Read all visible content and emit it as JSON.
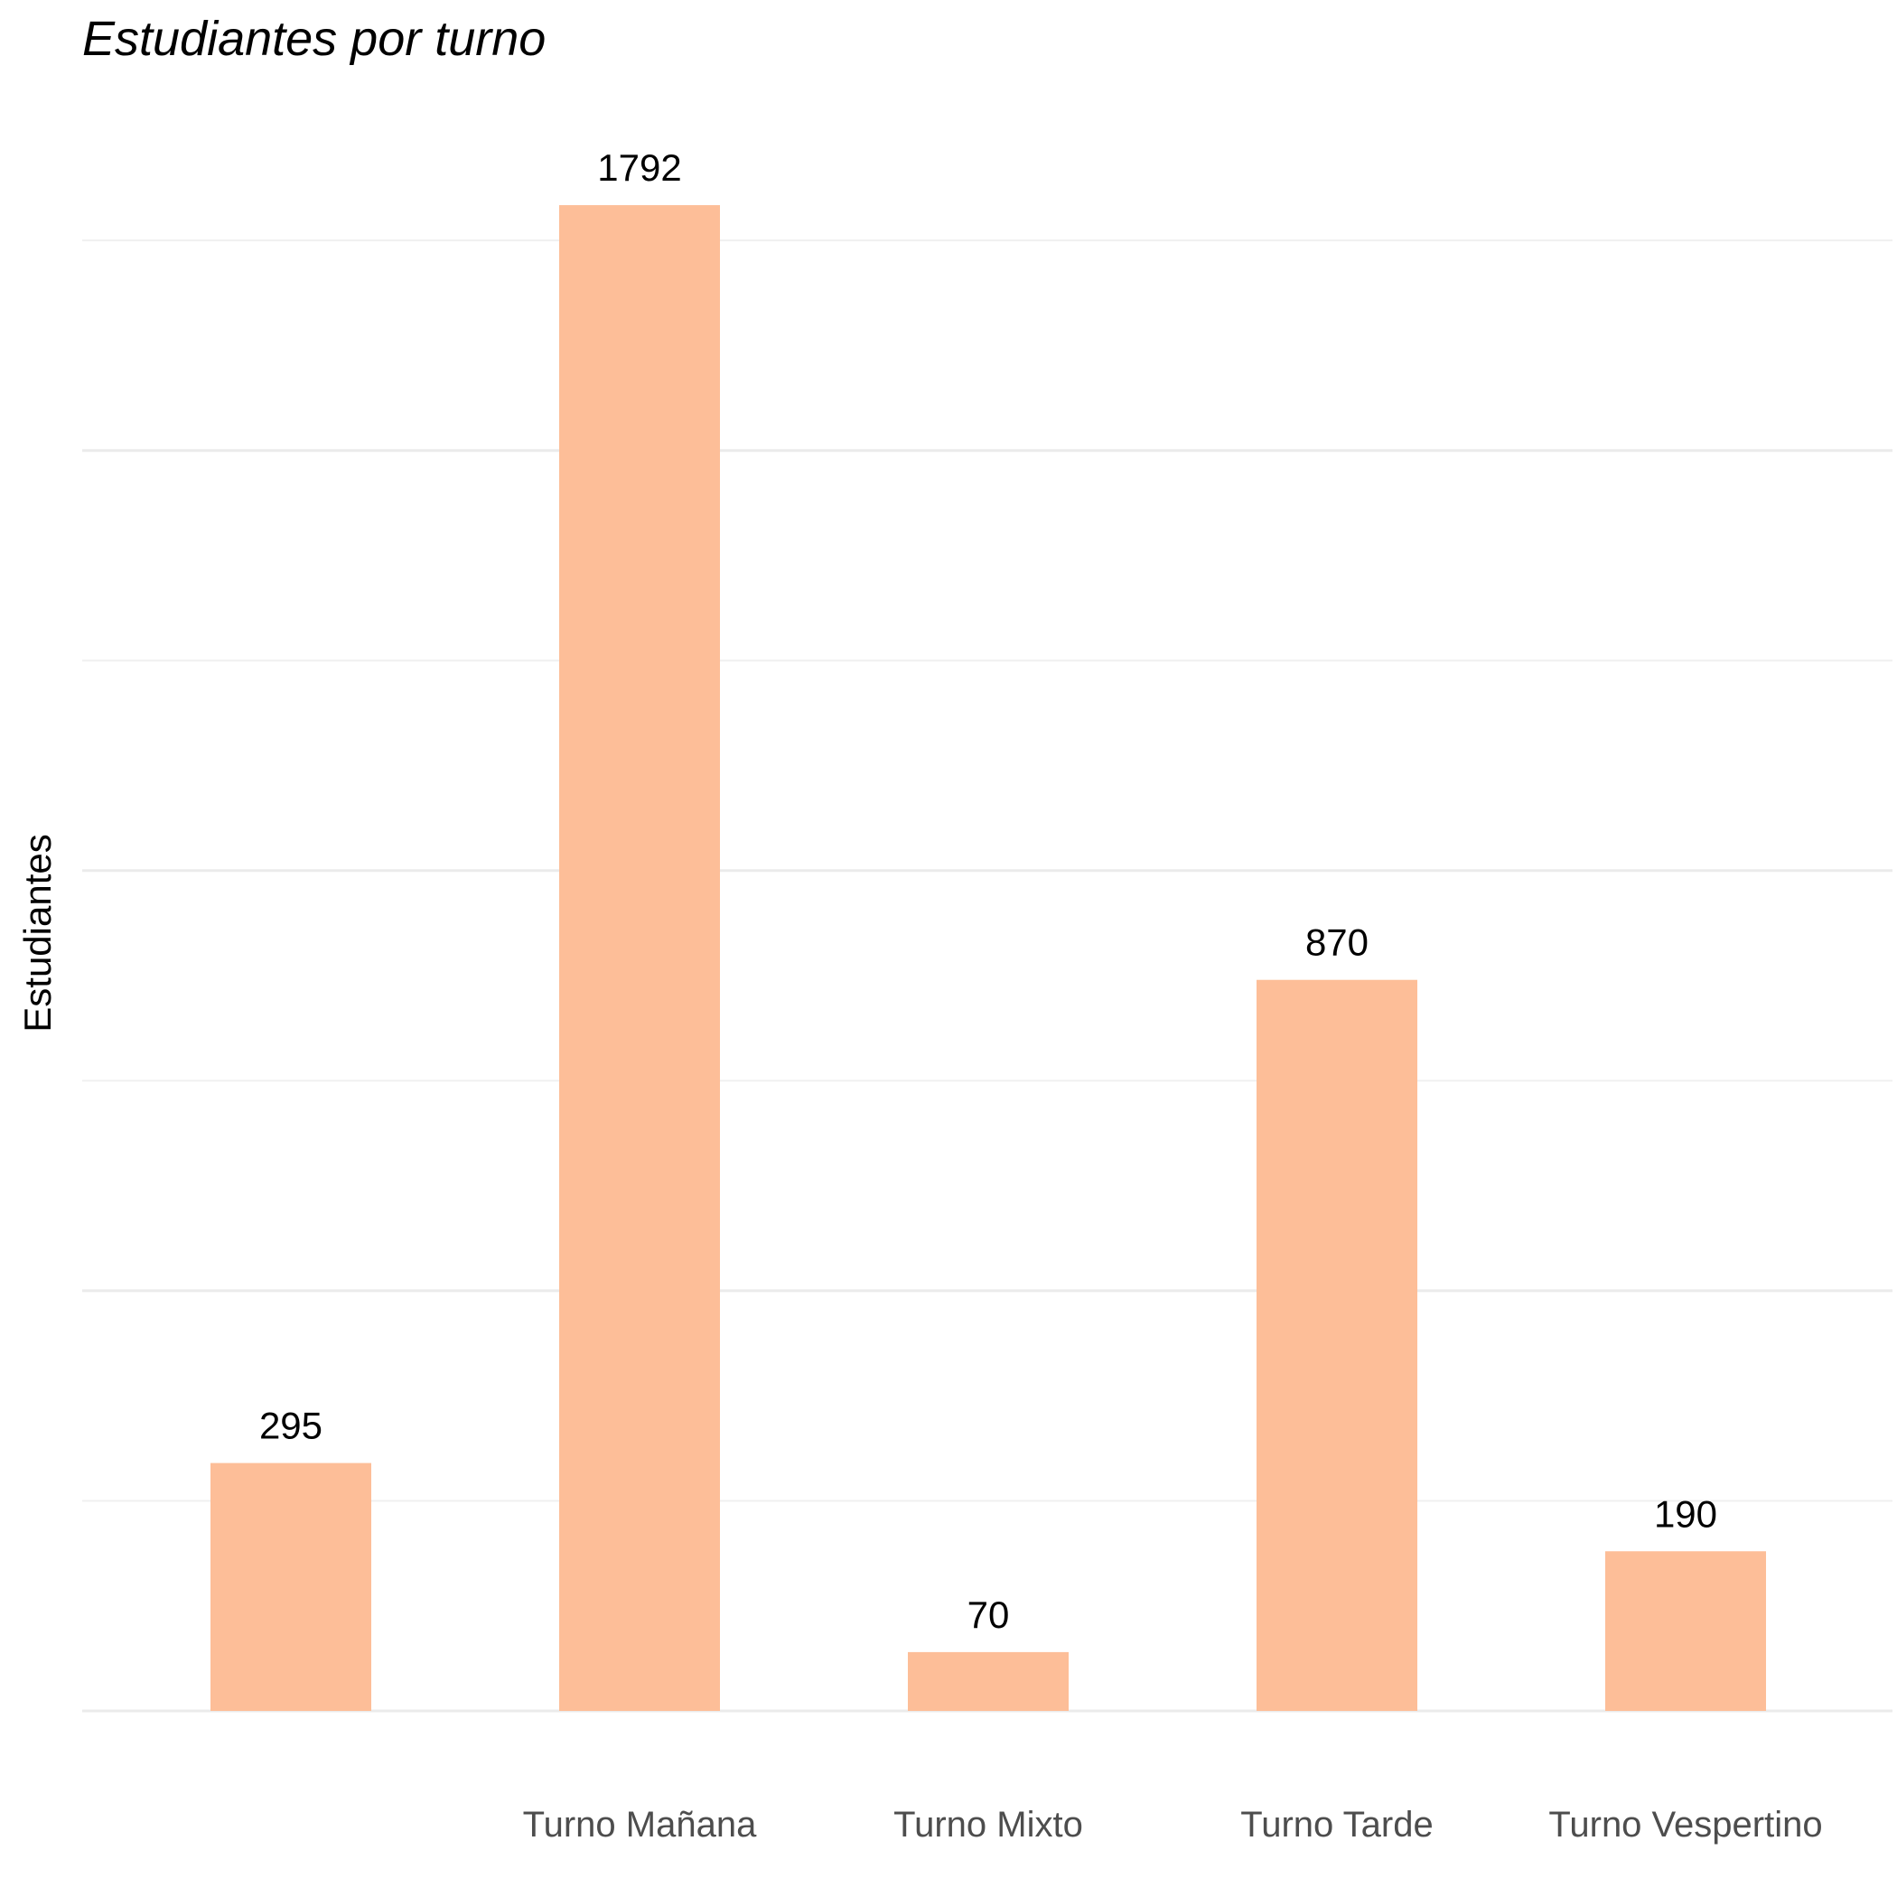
{
  "chart_data": {
    "type": "bar",
    "title": "Estudiantes por turno",
    "xlabel": "",
    "ylabel": "Estudiantes",
    "categories": [
      "",
      "Turno Mañana",
      "Turno Mixto",
      "Turno Tarde",
      "Turno Vespertino"
    ],
    "values": [
      295,
      1792,
      70,
      870,
      190
    ],
    "ylim": [
      0,
      1875
    ],
    "grid": true,
    "legend": "none",
    "colors": {
      "bar": "#fdbe98",
      "grid": "#ebebeb",
      "tick_text": "#4d4d4d",
      "label_text": "#000000"
    }
  }
}
